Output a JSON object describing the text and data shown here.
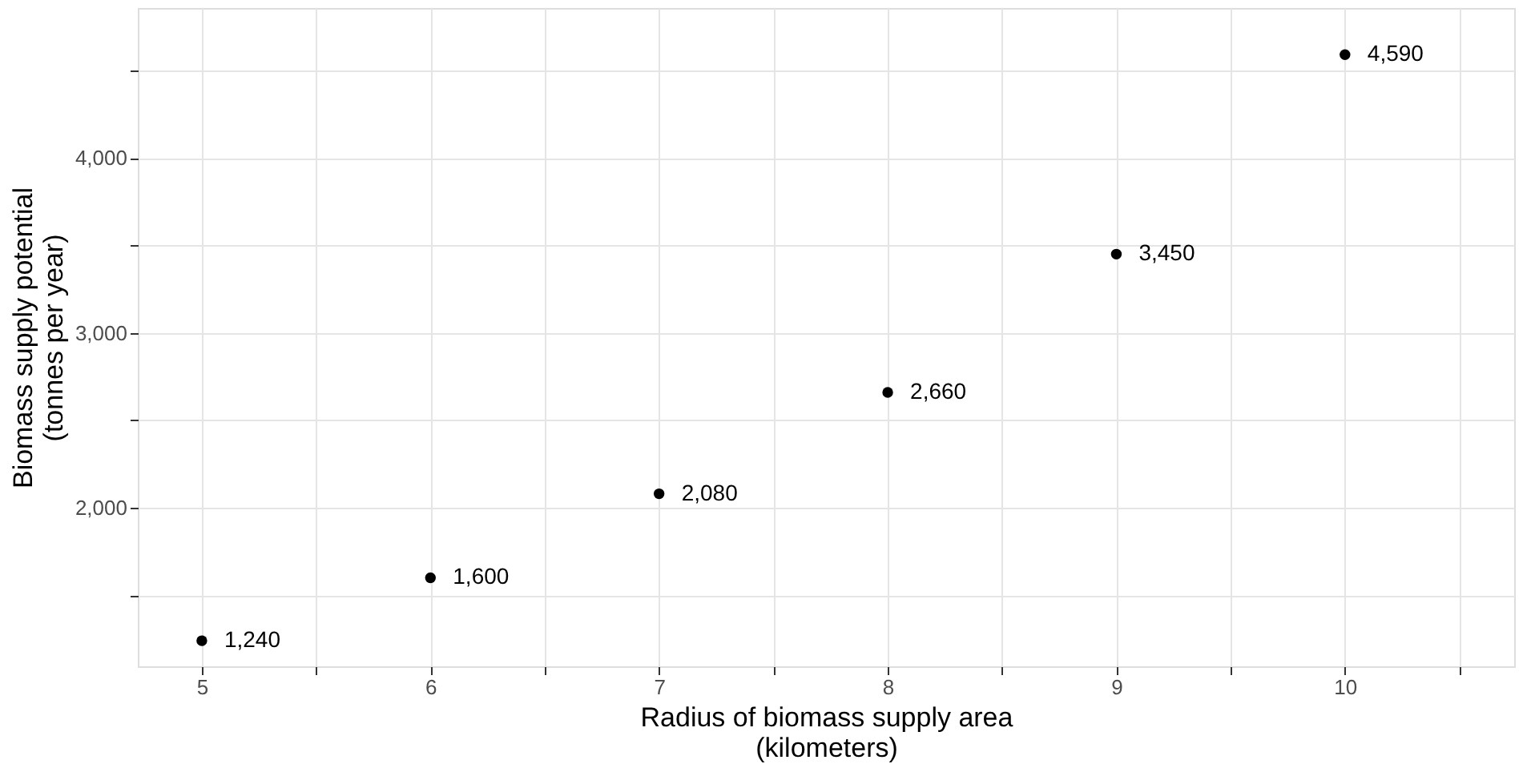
{
  "chart_data": {
    "type": "scatter",
    "xlabel": "Radius of biomass supply area\n(kilometers)",
    "ylabel": "Biomass supply potential\n(tonnes per year)",
    "x": [
      5,
      6,
      7,
      8,
      9,
      10
    ],
    "values": [
      1240,
      1600,
      2080,
      2660,
      3450,
      4590
    ],
    "value_labels": [
      "1,240",
      "1,600",
      "2,080",
      "2,660",
      "3,450",
      "4,590"
    ],
    "color": "#000000",
    "marker": "circle",
    "grid": true,
    "xlim": [
      4.72,
      10.74
    ],
    "xticks": [
      5,
      {
        "value": 5.5,
        "label": null
      },
      6,
      {
        "value": 6.5,
        "label": null
      },
      7,
      {
        "value": 7.5,
        "label": null
      },
      8,
      {
        "value": 8.5,
        "label": null
      },
      9,
      {
        "value": 9.5,
        "label": null
      },
      10,
      {
        "value": 10.5,
        "label": null
      }
    ],
    "ylim": [
      1094,
      4857
    ],
    "yticks": [
      {
        "value": 1500,
        "label": null
      },
      {
        "value": 2000,
        "label": "2,000"
      },
      {
        "value": 2500,
        "label": null
      },
      {
        "value": 3000,
        "label": "3,000"
      },
      {
        "value": 3500,
        "label": null
      },
      {
        "value": 4000,
        "label": "4,000"
      },
      {
        "value": 4500,
        "label": null
      }
    ]
  }
}
